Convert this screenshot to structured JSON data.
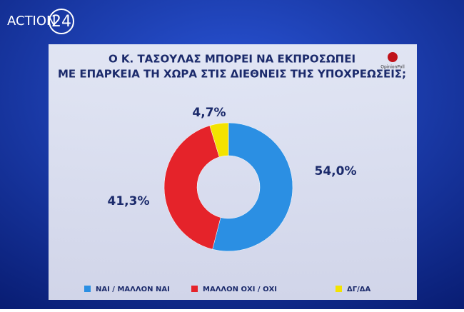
{
  "channel_logo": {
    "name": "ACTION",
    "number": "24"
  },
  "poll_logo": "OpinionPoll",
  "chart_data": {
    "type": "donut",
    "title": [
      "Ο Κ. ΤΑΣΟΥΛΑΣ ΜΠΟΡΕΙ ΝΑ ΕΚΠΡΟΣΩΠΕΙ",
      "ΜΕ ΕΠΑΡΚΕΙΑ ΤΗ ΧΩΡΑ ΣΤΙΣ ΔΙΕΘΝΕΙΣ ΤΗΣ ΥΠΟΧΡΕΩΣΕΙΣ;"
    ],
    "categories": [
      "ΝΑΙ / ΜΑΛΛΟΝ ΝΑΙ",
      "ΜΑΛΛΟΝ ΟΧΙ / ΟΧΙ",
      "ΔΓ/ΔΑ"
    ],
    "values": [
      54.0,
      41.3,
      4.7
    ],
    "value_labels": [
      "54,0%",
      "41,3%",
      "4,7%"
    ],
    "colors": [
      "#2b8fe3",
      "#e5232a",
      "#f3e300"
    ]
  }
}
